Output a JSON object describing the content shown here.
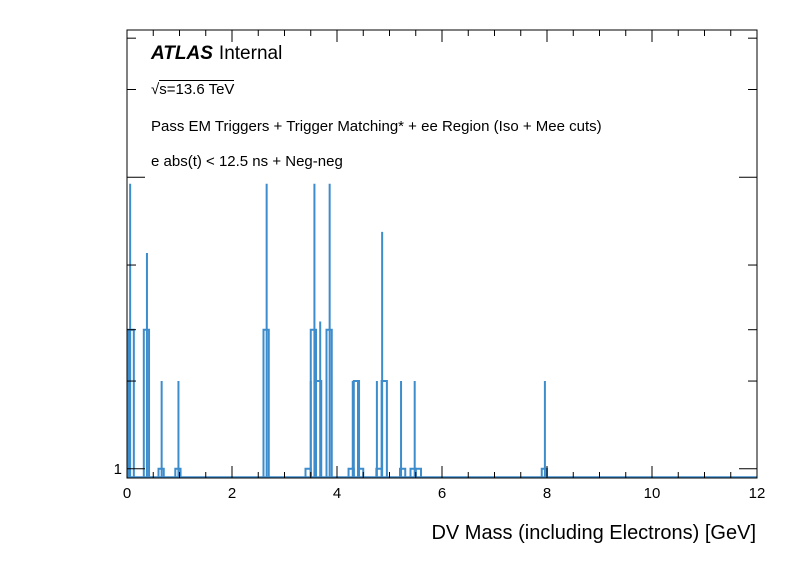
{
  "chart_data": {
    "type": "histogram",
    "xlabel": "DV Mass (including Electrons) [GeV]",
    "xlim": [
      0,
      12
    ],
    "x_ticks": [
      "0",
      "2",
      "4",
      "6",
      "8",
      "10",
      "12"
    ],
    "ylim": [
      0.93,
      32
    ],
    "y_scale": "log",
    "y_tick_labels": [
      {
        "value": 1,
        "label": "1"
      }
    ],
    "grid": false,
    "line_color": "#3d8ccc",
    "series": [
      {
        "style": "step",
        "bins": [
          {
            "x": 0.08,
            "value": 3
          },
          {
            "x": 0.37,
            "value": 3
          },
          {
            "x": 0.65,
            "value": 1
          },
          {
            "x": 0.97,
            "value": 1
          },
          {
            "x": 2.65,
            "value": 3
          },
          {
            "x": 3.45,
            "value": 1
          },
          {
            "x": 3.55,
            "value": 3
          },
          {
            "x": 3.65,
            "value": 2
          },
          {
            "x": 3.85,
            "value": 3
          },
          {
            "x": 4.27,
            "value": 1
          },
          {
            "x": 4.37,
            "value": 2
          },
          {
            "x": 4.45,
            "value": 1
          },
          {
            "x": 4.8,
            "value": 1
          },
          {
            "x": 4.9,
            "value": 2
          },
          {
            "x": 5.25,
            "value": 1
          },
          {
            "x": 5.45,
            "value": 1
          },
          {
            "x": 5.55,
            "value": 1
          },
          {
            "x": 7.95,
            "value": 1
          }
        ]
      },
      {
        "style": "spike",
        "points": [
          {
            "x": 0.06,
            "value": 9.5
          },
          {
            "x": 0.38,
            "value": 5.5
          },
          {
            "x": 0.66,
            "value": 2
          },
          {
            "x": 0.98,
            "value": 2
          },
          {
            "x": 2.66,
            "value": 9.5
          },
          {
            "x": 3.5,
            "value": 2
          },
          {
            "x": 3.57,
            "value": 9.5
          },
          {
            "x": 3.68,
            "value": 3.2
          },
          {
            "x": 3.86,
            "value": 9.5
          },
          {
            "x": 4.3,
            "value": 2
          },
          {
            "x": 4.4,
            "value": 2
          },
          {
            "x": 4.76,
            "value": 2
          },
          {
            "x": 4.86,
            "value": 6.5
          },
          {
            "x": 5.22,
            "value": 2
          },
          {
            "x": 5.48,
            "value": 2
          },
          {
            "x": 7.96,
            "value": 2
          }
        ]
      }
    ],
    "annotations": {
      "atlas_bold": "ATLAS",
      "atlas_rest": "Internal",
      "sqrt": "√",
      "energy": "s=13.6 TeV",
      "line1": "Pass EM Triggers + Trigger Matching* + ee Region (Iso + Mee cuts)",
      "line2": "e abs(t) < 12.5 ns + Neg-neg"
    }
  }
}
